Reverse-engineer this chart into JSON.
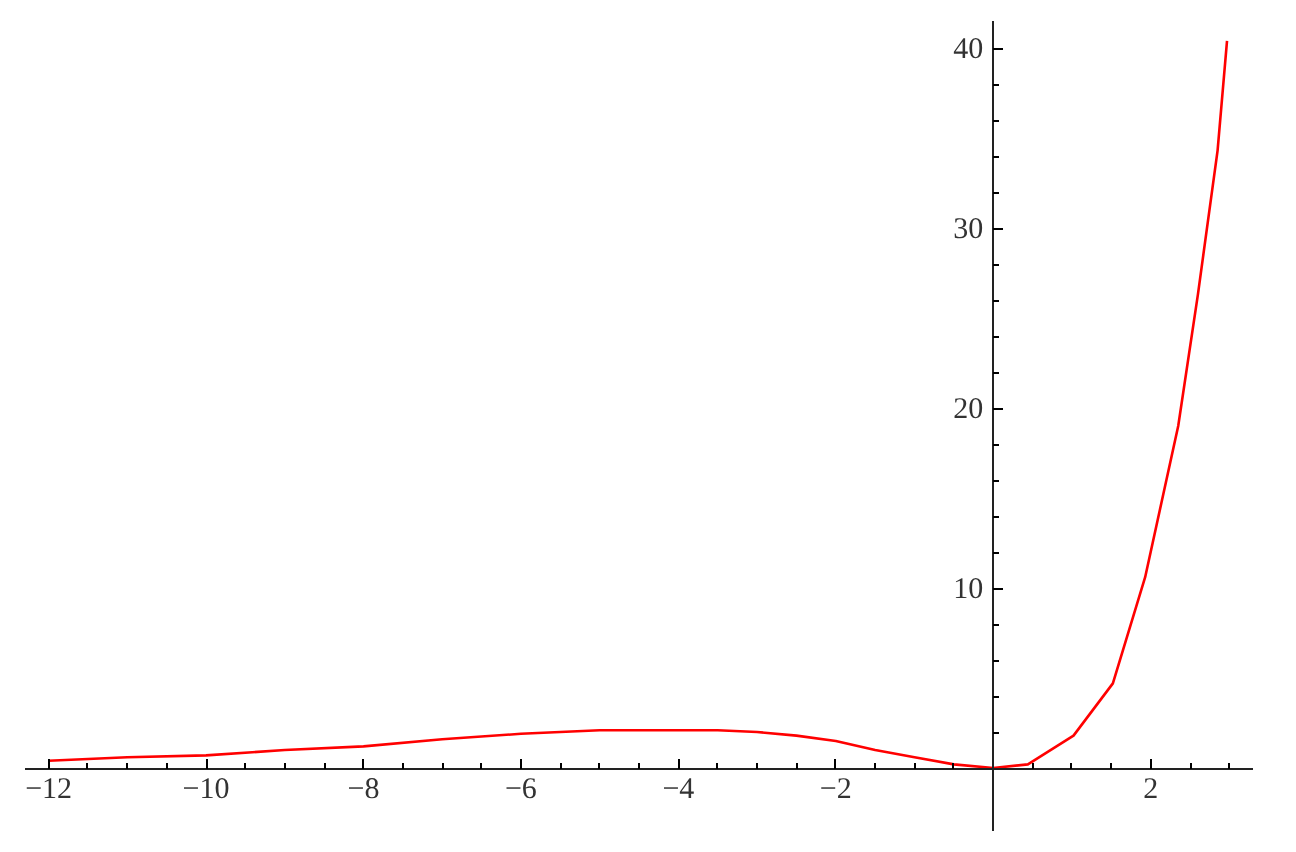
{
  "chart_data": {
    "type": "line",
    "x": [
      -12,
      -11,
      -10,
      -9,
      -8,
      -7,
      -6,
      -5,
      -4.5,
      -4,
      -3.5,
      -3,
      -2.5,
      -2,
      -1.5,
      -1,
      -0.5,
      0,
      0.44,
      1.02,
      1.52,
      1.93,
      2.35,
      2.6,
      2.85,
      2.97
    ],
    "series": [
      {
        "color": "#ff0000",
        "values": [
          0.4,
          0.6,
          0.7,
          1.0,
          1.2,
          1.6,
          1.9,
          2.1,
          2.1,
          2.1,
          2.1,
          2.0,
          1.8,
          1.5,
          1.0,
          0.6,
          0.2,
          0,
          0.2,
          1.8,
          4.7,
          10.6,
          19.0,
          26.3,
          34.3,
          40.4
        ]
      }
    ],
    "xlim": [
      -12.3,
      3.3
    ],
    "ylim": [
      -3.5,
      41.5
    ],
    "xticks": [
      {
        "value": -12,
        "label": "−12"
      },
      {
        "value": -11.5,
        "label": null
      },
      {
        "value": -11,
        "label": null
      },
      {
        "value": -10.5,
        "label": null
      },
      {
        "value": -10,
        "label": "−10"
      },
      {
        "value": -9.5,
        "label": null
      },
      {
        "value": -9,
        "label": null
      },
      {
        "value": -8.5,
        "label": null
      },
      {
        "value": -8,
        "label": "−8"
      },
      {
        "value": -7.5,
        "label": null
      },
      {
        "value": -7,
        "label": null
      },
      {
        "value": -6.5,
        "label": null
      },
      {
        "value": -6,
        "label": "−6"
      },
      {
        "value": -5.5,
        "label": null
      },
      {
        "value": -5,
        "label": null
      },
      {
        "value": -4.5,
        "label": null
      },
      {
        "value": -4,
        "label": "−4"
      },
      {
        "value": -3.5,
        "label": null
      },
      {
        "value": -3,
        "label": null
      },
      {
        "value": -2.5,
        "label": null
      },
      {
        "value": -2,
        "label": "−2"
      },
      {
        "value": -1.5,
        "label": null
      },
      {
        "value": -1,
        "label": null
      },
      {
        "value": -0.5,
        "label": null
      },
      {
        "value": 0.5,
        "label": null
      },
      {
        "value": 1,
        "label": null
      },
      {
        "value": 1.5,
        "label": null
      },
      2,
      {
        "value": 2.5,
        "label": null
      },
      {
        "value": 3,
        "label": null
      }
    ],
    "yticks": [
      {
        "value": 2,
        "label": null
      },
      {
        "value": 4,
        "label": null
      },
      {
        "value": 6,
        "label": null
      },
      {
        "value": 8,
        "label": null
      },
      10,
      {
        "value": 12,
        "label": null
      },
      {
        "value": 14,
        "label": null
      },
      {
        "value": 16,
        "label": null
      },
      {
        "value": 18,
        "label": null
      },
      20,
      {
        "value": 22,
        "label": null
      },
      {
        "value": 24,
        "label": null
      },
      {
        "value": 26,
        "label": null
      },
      {
        "value": 28,
        "label": null
      },
      30,
      {
        "value": 32,
        "label": null
      },
      {
        "value": 34,
        "label": null
      },
      {
        "value": 36,
        "label": null
      },
      {
        "value": 38,
        "label": null
      },
      40
    ],
    "grid": false,
    "marker": "none",
    "line_style": "solid"
  }
}
